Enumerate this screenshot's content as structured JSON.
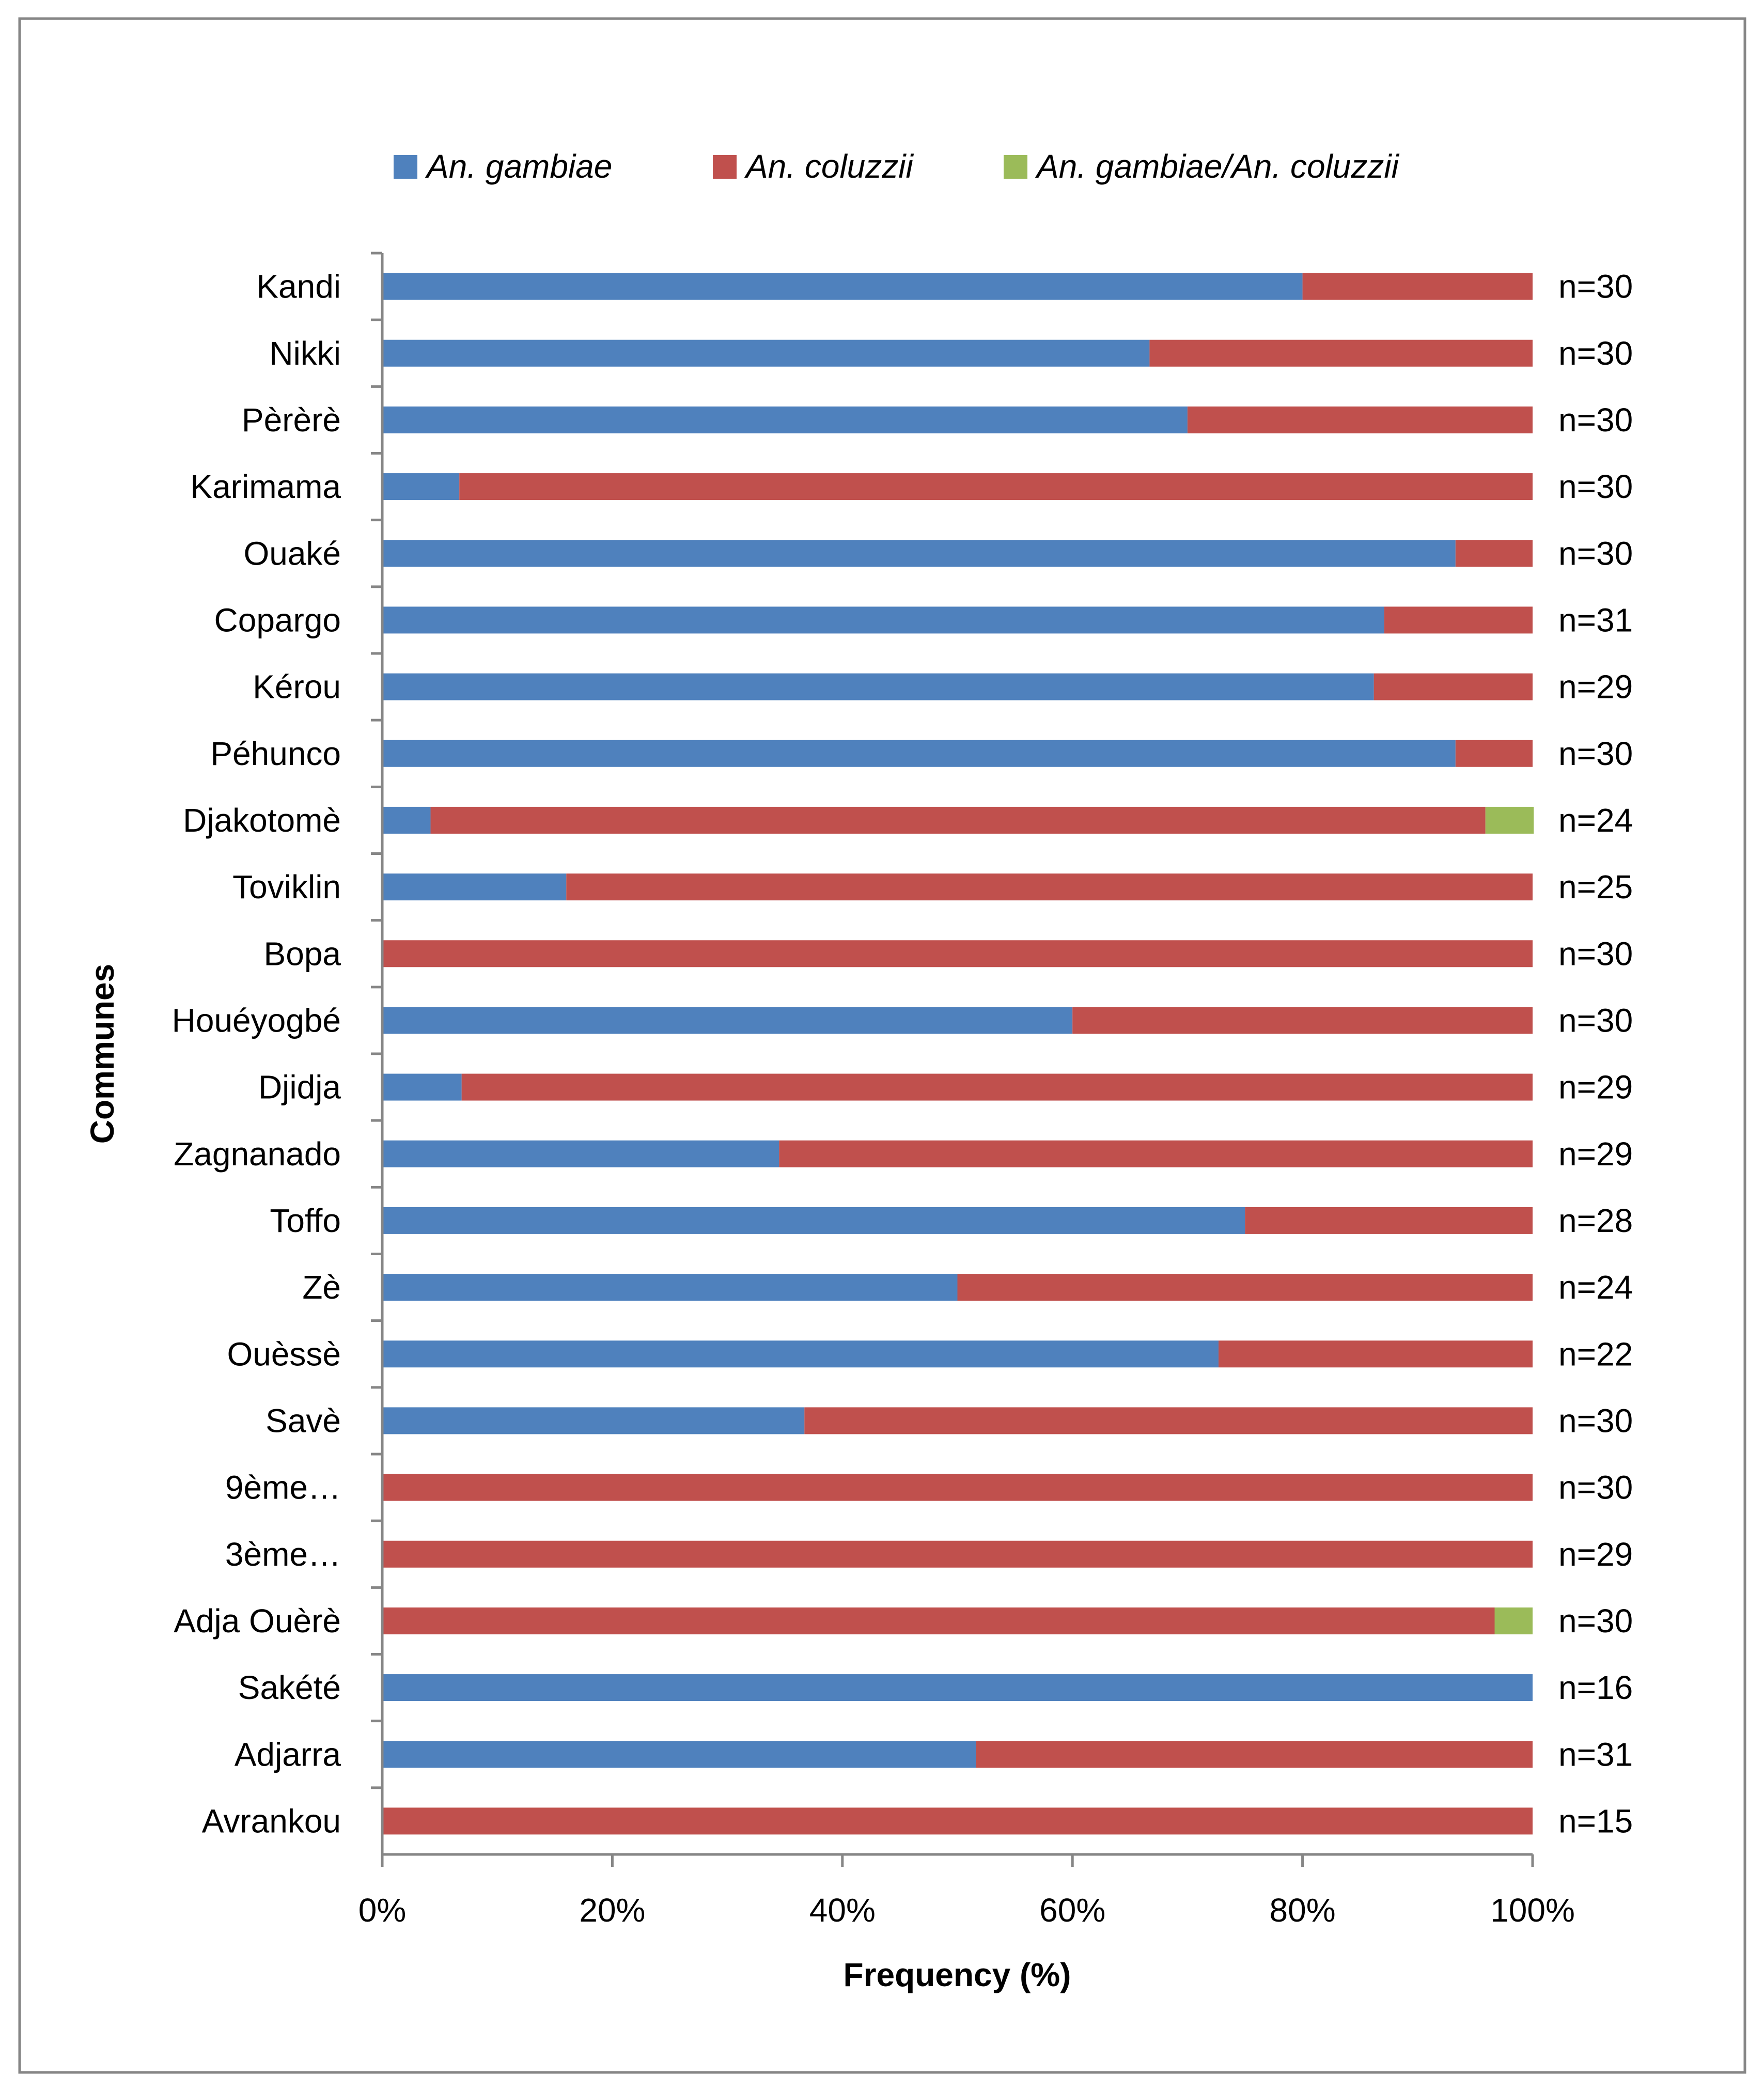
{
  "chart_data": {
    "type": "bar",
    "orientation": "horizontal",
    "stacked": "percent",
    "title": "",
    "xlabel": "Frequency (%)",
    "ylabel": "Communes",
    "xlim": [
      0,
      100
    ],
    "xticks": [
      "0%",
      "20%",
      "40%",
      "60%",
      "80%",
      "100%"
    ],
    "legend_position": "top",
    "categories": [
      "Kandi",
      "Nikki",
      "Pèrèrè",
      "Karimama",
      "Ouaké",
      "Copargo",
      "Kérou",
      "Péhunco",
      "Djakotomè",
      "Toviklin",
      "Bopa",
      "Houéyogbé",
      "Djidja",
      "Zagnanado",
      "Toffo",
      "Zè",
      "Ouèssè",
      "Savè",
      "9ème…",
      "3ème…",
      "Adja Ouèrè",
      "Sakété",
      "Adjarra",
      "Avrankou"
    ],
    "series": [
      {
        "name": "An. gambiae",
        "color": "#4F81BD",
        "values": [
          80,
          66.7,
          70,
          6.7,
          93.3,
          87.1,
          86.2,
          93.3,
          4.2,
          16,
          0,
          60,
          6.9,
          34.5,
          75,
          50,
          72.7,
          36.7,
          0,
          0,
          0,
          100,
          51.6,
          0
        ]
      },
      {
        "name": "An. coluzzii",
        "color": "#C0504D",
        "values": [
          20,
          33.3,
          30,
          93.3,
          6.7,
          12.9,
          13.8,
          6.7,
          91.7,
          84,
          100,
          40,
          93.1,
          65.5,
          25,
          50,
          27.3,
          63.3,
          100,
          100,
          96.7,
          0,
          48.4,
          100
        ]
      },
      {
        "name": "An. gambiae/An. coluzzii",
        "color": "#9BBB59",
        "values": [
          0,
          0,
          0,
          0,
          0,
          0,
          0,
          0,
          4.2,
          0,
          0,
          0,
          0,
          0,
          0,
          0,
          0,
          0,
          0,
          0,
          3.3,
          0,
          0,
          0
        ]
      }
    ],
    "annotations": [
      "n=30",
      "n=30",
      "n=30",
      "n=30",
      "n=30",
      "n=31",
      "n=29",
      "n=30",
      "n=24",
      "n=25",
      "n=30",
      "n=30",
      "n=29",
      "n=29",
      "n=28",
      "n=24",
      "n=22",
      "n=30",
      "n=30",
      "n=29",
      "n=30",
      "n=16",
      "n=31",
      "n=15"
    ]
  }
}
